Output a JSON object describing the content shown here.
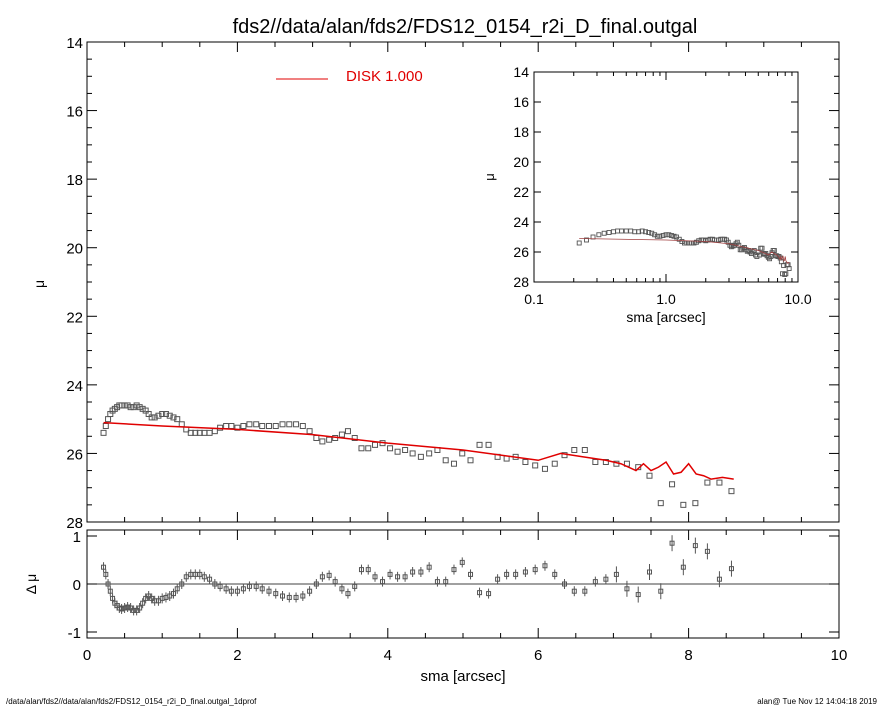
{
  "footer": {
    "left": "/data/alan/fds2//data/alan/fds2/FDS12_0154_r2i_D_final.outgal_1dprof",
    "right": "alan@  Tue Nov 12 14:04:18 2019"
  },
  "colors": {
    "model": "#e00000",
    "data": "#555555",
    "axes": "#000000"
  },
  "chart_data": [
    {
      "type": "scatter",
      "title": "fds2//data/alan/fds2/FDS12_0154_r2i_D_final.outgal",
      "xlabel": "",
      "ylabel": "μ",
      "xlim": [
        0,
        10
      ],
      "ylim": [
        28,
        14
      ],
      "y_inverted": true,
      "x_ticks": [
        0,
        2,
        4,
        6,
        8,
        10
      ],
      "y_ticks": [
        14,
        16,
        18,
        20,
        22,
        24,
        26,
        28
      ],
      "legend": {
        "label": "DISK  1.000",
        "placement": "top-center"
      },
      "series": [
        {
          "name": "DISK  1.000",
          "kind": "line",
          "x": [
            0.22,
            1.0,
            2.0,
            3.0,
            4.0,
            5.0,
            6.0,
            6.3,
            6.6,
            6.9,
            7.1,
            7.3,
            7.4,
            7.5,
            7.6,
            7.7,
            7.8,
            7.9,
            8.0,
            8.1,
            8.2,
            8.3,
            8.45,
            8.6
          ],
          "y": [
            25.1,
            25.2,
            25.3,
            25.45,
            25.7,
            25.9,
            26.2,
            26.0,
            26.1,
            26.2,
            26.3,
            26.5,
            26.3,
            26.5,
            26.4,
            26.25,
            26.6,
            26.55,
            26.3,
            26.6,
            26.65,
            26.75,
            26.7,
            26.75
          ]
        },
        {
          "name": "",
          "kind": "points",
          "x": [
            0.22,
            0.25,
            0.28,
            0.31,
            0.34,
            0.37,
            0.4,
            0.43,
            0.46,
            0.5,
            0.54,
            0.58,
            0.62,
            0.66,
            0.7,
            0.74,
            0.78,
            0.82,
            0.86,
            0.9,
            0.95,
            1.0,
            1.05,
            1.1,
            1.15,
            1.2,
            1.26,
            1.32,
            1.38,
            1.44,
            1.5,
            1.56,
            1.63,
            1.7,
            1.77,
            1.85,
            1.92,
            2.0,
            2.08,
            2.16,
            2.25,
            2.33,
            2.42,
            2.51,
            2.6,
            2.69,
            2.78,
            2.87,
            2.96,
            3.05,
            3.13,
            3.22,
            3.3,
            3.39,
            3.47,
            3.56,
            3.65,
            3.74,
            3.83,
            3.93,
            4.03,
            4.13,
            4.23,
            4.33,
            4.44,
            4.55,
            4.66,
            4.77,
            4.88,
            4.99,
            5.1,
            5.22,
            5.34,
            5.46,
            5.58,
            5.7,
            5.83,
            5.96,
            6.09,
            6.22,
            6.35,
            6.48,
            6.62,
            6.76,
            6.9,
            7.04,
            7.18,
            7.33,
            7.48,
            7.63,
            7.78,
            7.93,
            8.09,
            8.25,
            8.41,
            8.57
          ],
          "y": [
            25.4,
            25.2,
            25.0,
            24.85,
            24.75,
            24.7,
            24.65,
            24.6,
            24.6,
            24.6,
            24.6,
            24.65,
            24.65,
            24.6,
            24.65,
            24.7,
            24.75,
            24.85,
            24.95,
            24.95,
            24.9,
            24.85,
            24.85,
            24.9,
            24.95,
            25.0,
            25.15,
            25.3,
            25.4,
            25.4,
            25.4,
            25.4,
            25.4,
            25.35,
            25.25,
            25.2,
            25.2,
            25.25,
            25.2,
            25.15,
            25.15,
            25.2,
            25.2,
            25.2,
            25.15,
            25.15,
            25.15,
            25.2,
            25.35,
            25.55,
            25.65,
            25.6,
            25.55,
            25.45,
            25.35,
            25.55,
            25.85,
            25.85,
            25.75,
            25.7,
            25.85,
            25.95,
            25.9,
            26.0,
            26.1,
            26.0,
            25.9,
            26.2,
            26.3,
            26.0,
            26.2,
            25.75,
            25.75,
            26.1,
            26.15,
            26.1,
            26.25,
            26.35,
            26.45,
            26.3,
            26.05,
            25.9,
            25.9,
            26.25,
            26.25,
            26.3,
            26.3,
            26.4,
            26.65,
            27.45,
            26.9,
            27.5,
            27.45,
            26.85,
            26.85,
            27.1
          ]
        }
      ]
    },
    {
      "type": "scatter",
      "title": "",
      "xlabel": "sma [arcsec]",
      "ylabel": "Δ μ",
      "xlim": [
        0,
        10
      ],
      "ylim": [
        -1.1,
        1.1
      ],
      "x_ticks": [
        0,
        2,
        4,
        6,
        8,
        10
      ],
      "y_ticks": [
        1,
        0,
        -1
      ],
      "zero_line": true,
      "series": [
        {
          "name": "",
          "kind": "points",
          "x": [
            0.22,
            0.25,
            0.28,
            0.31,
            0.34,
            0.37,
            0.4,
            0.43,
            0.46,
            0.5,
            0.54,
            0.58,
            0.62,
            0.66,
            0.7,
            0.74,
            0.78,
            0.82,
            0.86,
            0.9,
            0.95,
            1.0,
            1.05,
            1.1,
            1.15,
            1.2,
            1.26,
            1.32,
            1.38,
            1.44,
            1.5,
            1.56,
            1.63,
            1.7,
            1.77,
            1.85,
            1.92,
            2.0,
            2.08,
            2.16,
            2.25,
            2.33,
            2.42,
            2.51,
            2.6,
            2.69,
            2.78,
            2.87,
            2.96,
            3.05,
            3.13,
            3.22,
            3.3,
            3.39,
            3.47,
            3.56,
            3.65,
            3.74,
            3.83,
            3.93,
            4.03,
            4.13,
            4.23,
            4.33,
            4.44,
            4.55,
            4.66,
            4.77,
            4.88,
            4.99,
            5.1,
            5.22,
            5.34,
            5.46,
            5.58,
            5.7,
            5.83,
            5.96,
            6.09,
            6.22,
            6.35,
            6.48,
            6.62,
            6.76,
            6.9,
            7.04,
            7.18,
            7.33,
            7.48,
            7.63,
            7.78,
            7.93,
            8.09,
            8.25,
            8.41,
            8.57
          ],
          "y": [
            0.35,
            0.2,
            0.0,
            -0.15,
            -0.3,
            -0.4,
            -0.45,
            -0.5,
            -0.52,
            -0.5,
            -0.48,
            -0.5,
            -0.55,
            -0.55,
            -0.5,
            -0.4,
            -0.3,
            -0.25,
            -0.3,
            -0.35,
            -0.35,
            -0.3,
            -0.28,
            -0.25,
            -0.2,
            -0.1,
            0.0,
            0.15,
            0.2,
            0.2,
            0.2,
            0.15,
            0.1,
            0.0,
            -0.05,
            -0.1,
            -0.15,
            -0.15,
            -0.1,
            -0.05,
            -0.05,
            -0.1,
            -0.15,
            -0.2,
            -0.25,
            -0.28,
            -0.28,
            -0.25,
            -0.15,
            0.0,
            0.15,
            0.18,
            0.05,
            -0.1,
            -0.2,
            -0.05,
            0.3,
            0.3,
            0.15,
            0.05,
            0.2,
            0.15,
            0.15,
            0.25,
            0.25,
            0.35,
            0.05,
            0.05,
            0.3,
            0.45,
            0.2,
            -0.18,
            -0.2,
            0.1,
            0.2,
            0.2,
            0.25,
            0.3,
            0.38,
            0.2,
            0.0,
            -0.15,
            -0.15,
            0.05,
            0.1,
            0.2,
            -0.1,
            -0.22,
            0.25,
            -0.15,
            0.85,
            0.35,
            0.8,
            0.68,
            0.1,
            0.32
          ]
        }
      ]
    },
    {
      "type": "scatter",
      "title": "",
      "xlabel": "sma [arcsec]",
      "ylabel": "μ",
      "x_scale": "log",
      "xlim": [
        0.1,
        10
      ],
      "ylim": [
        28,
        14
      ],
      "y_inverted": true,
      "x_tick_labels": [
        "0.1",
        "1.0",
        "10.0"
      ],
      "y_ticks": [
        14,
        16,
        18,
        20,
        22,
        24,
        26,
        28
      ],
      "placement": "inset top-right"
    }
  ]
}
